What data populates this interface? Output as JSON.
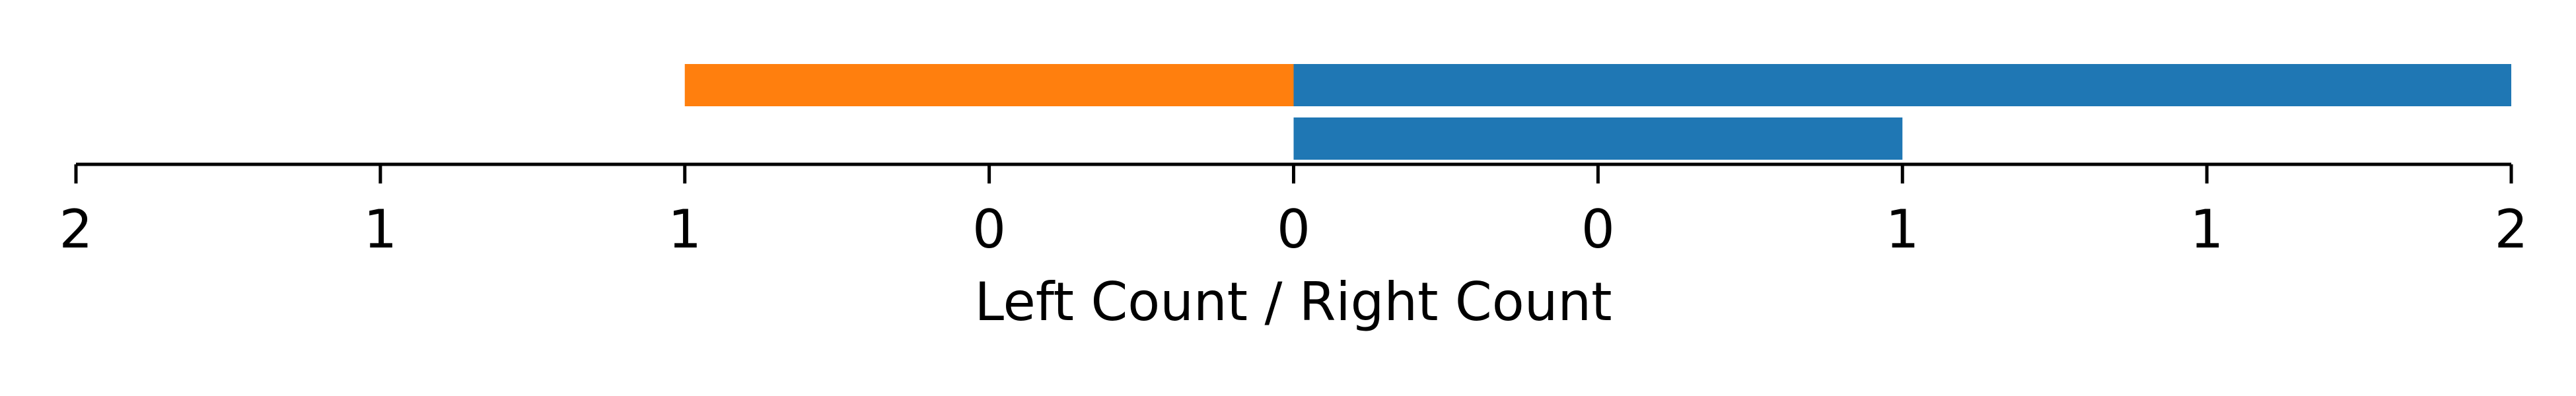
{
  "chart_data": {
    "type": "bar",
    "orientation": "horizontal-diverging",
    "xlabel": "Left Count / Right Count",
    "x_tick_labels": [
      "2",
      "1",
      "1",
      "0",
      "0",
      "0",
      "1",
      "1",
      "2"
    ],
    "x_tick_values": [
      -2,
      -1.5,
      -1,
      -0.5,
      0,
      0.5,
      1,
      1.5,
      2
    ],
    "xlim": [
      -2,
      2
    ],
    "rows": [
      {
        "left": 1,
        "right": 2
      },
      {
        "left": 0,
        "right": 1
      }
    ],
    "colors": {
      "left": "#ff7f0e",
      "right": "#1f77b4",
      "axis": "#000000"
    },
    "grid": false,
    "legend": "none"
  }
}
